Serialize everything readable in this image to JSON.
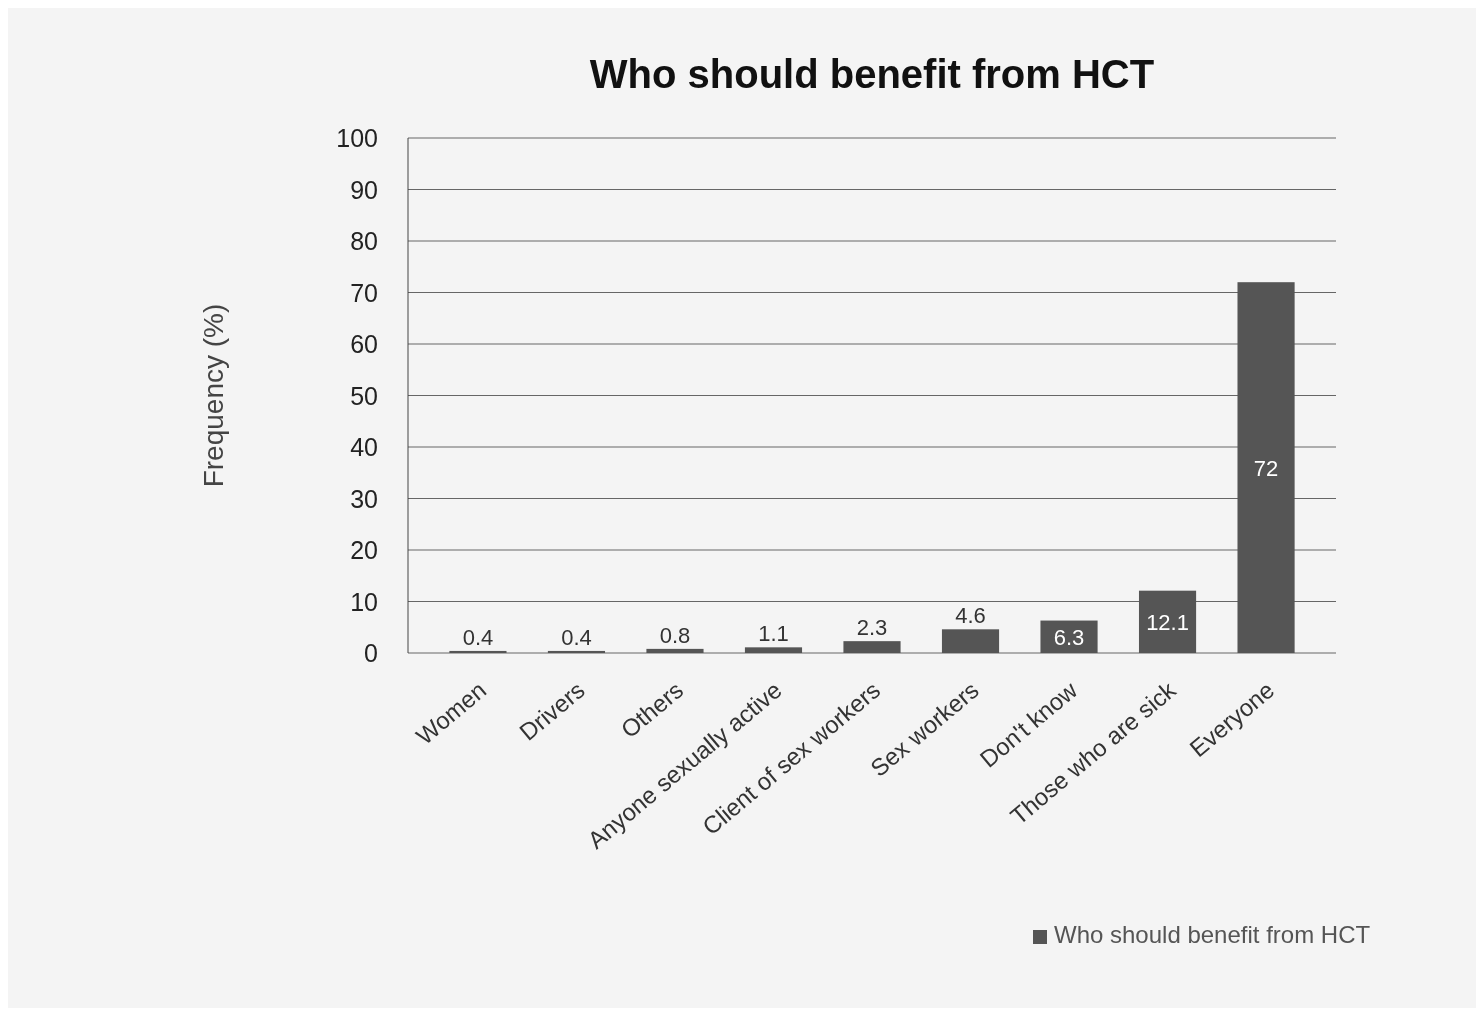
{
  "chart_data": {
    "type": "bar",
    "title": "Who should benefit from HCT",
    "ylabel": "Frequency (%)",
    "categories": [
      "Women",
      "Drivers",
      "Others",
      "Anyone sexually active",
      "Client of sex workers",
      "Sex workers",
      "Don't know",
      "Those who are sick",
      "Everyone"
    ],
    "series": [
      {
        "name": "Who should benefit from HCT",
        "color": "#555555",
        "values": [
          0.4,
          0.4,
          0.8,
          1.1,
          2.3,
          4.6,
          6.3,
          12.1,
          72
        ]
      }
    ],
    "ylim": [
      0,
      100
    ],
    "yticks": [
      0,
      10,
      20,
      30,
      40,
      50,
      60,
      70,
      80,
      90,
      100
    ],
    "grid": "y",
    "legend": "bottom right",
    "data_labels": true
  }
}
